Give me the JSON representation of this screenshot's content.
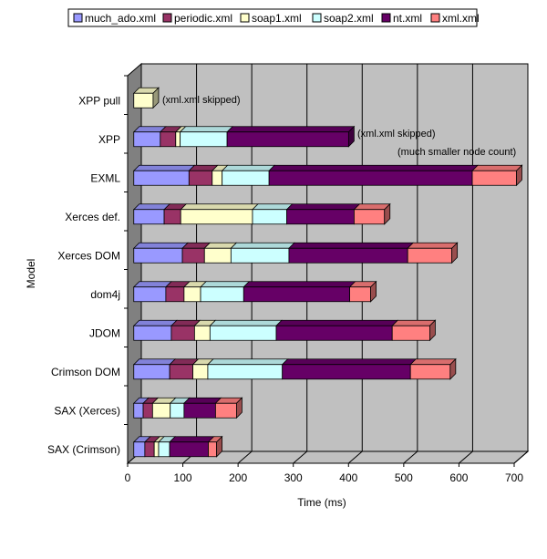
{
  "chart_data": {
    "type": "bar",
    "orientation": "horizontal",
    "stacked": true,
    "style": "3d",
    "xlabel": "Time (ms)",
    "ylabel": "Model",
    "xlim": [
      0,
      700
    ],
    "x_ticks": [
      "0",
      "100",
      "200",
      "300",
      "400",
      "500",
      "600",
      "700"
    ],
    "grid": true,
    "legend_position": "top",
    "categories": [
      "XPP pull",
      "XPP",
      "EXML",
      "Xerces def.",
      "Xerces DOM",
      "dom4j",
      "JDOM",
      "Crimson DOM",
      "SAX (Xerces)",
      "SAX (Crimson)"
    ],
    "series": [
      {
        "name": "much_ado.xml",
        "color": "#9999ff",
        "values": [
          0,
          48,
          100,
          55,
          88,
          58,
          68,
          65,
          17,
          20
        ]
      },
      {
        "name": "periodic.xml",
        "color": "#993366",
        "values": [
          0,
          28,
          42,
          30,
          40,
          33,
          42,
          42,
          17,
          17
        ]
      },
      {
        "name": "soap1.xml",
        "color": "#ffffcc",
        "values": [
          35,
          8,
          18,
          130,
          48,
          30,
          28,
          27,
          32,
          8
        ]
      },
      {
        "name": "soap2.xml",
        "color": "#ccffff",
        "values": [
          0,
          85,
          85,
          62,
          105,
          78,
          120,
          135,
          25,
          20
        ]
      },
      {
        "name": "nt.xml",
        "color": "#660066",
        "values": [
          0,
          220,
          368,
          122,
          215,
          192,
          210,
          232,
          57,
          70
        ]
      },
      {
        "name": "xml.xml",
        "color": "#ff8080",
        "values": [
          0,
          0,
          80,
          55,
          80,
          38,
          68,
          72,
          38,
          15
        ]
      }
    ],
    "annotations": [
      {
        "category": "XPP pull",
        "text": "(xml.xml skipped)"
      },
      {
        "category": "XPP",
        "text": "(xml.xml skipped)"
      },
      {
        "category": "XPP",
        "text": "(much smaller node count)"
      }
    ]
  }
}
